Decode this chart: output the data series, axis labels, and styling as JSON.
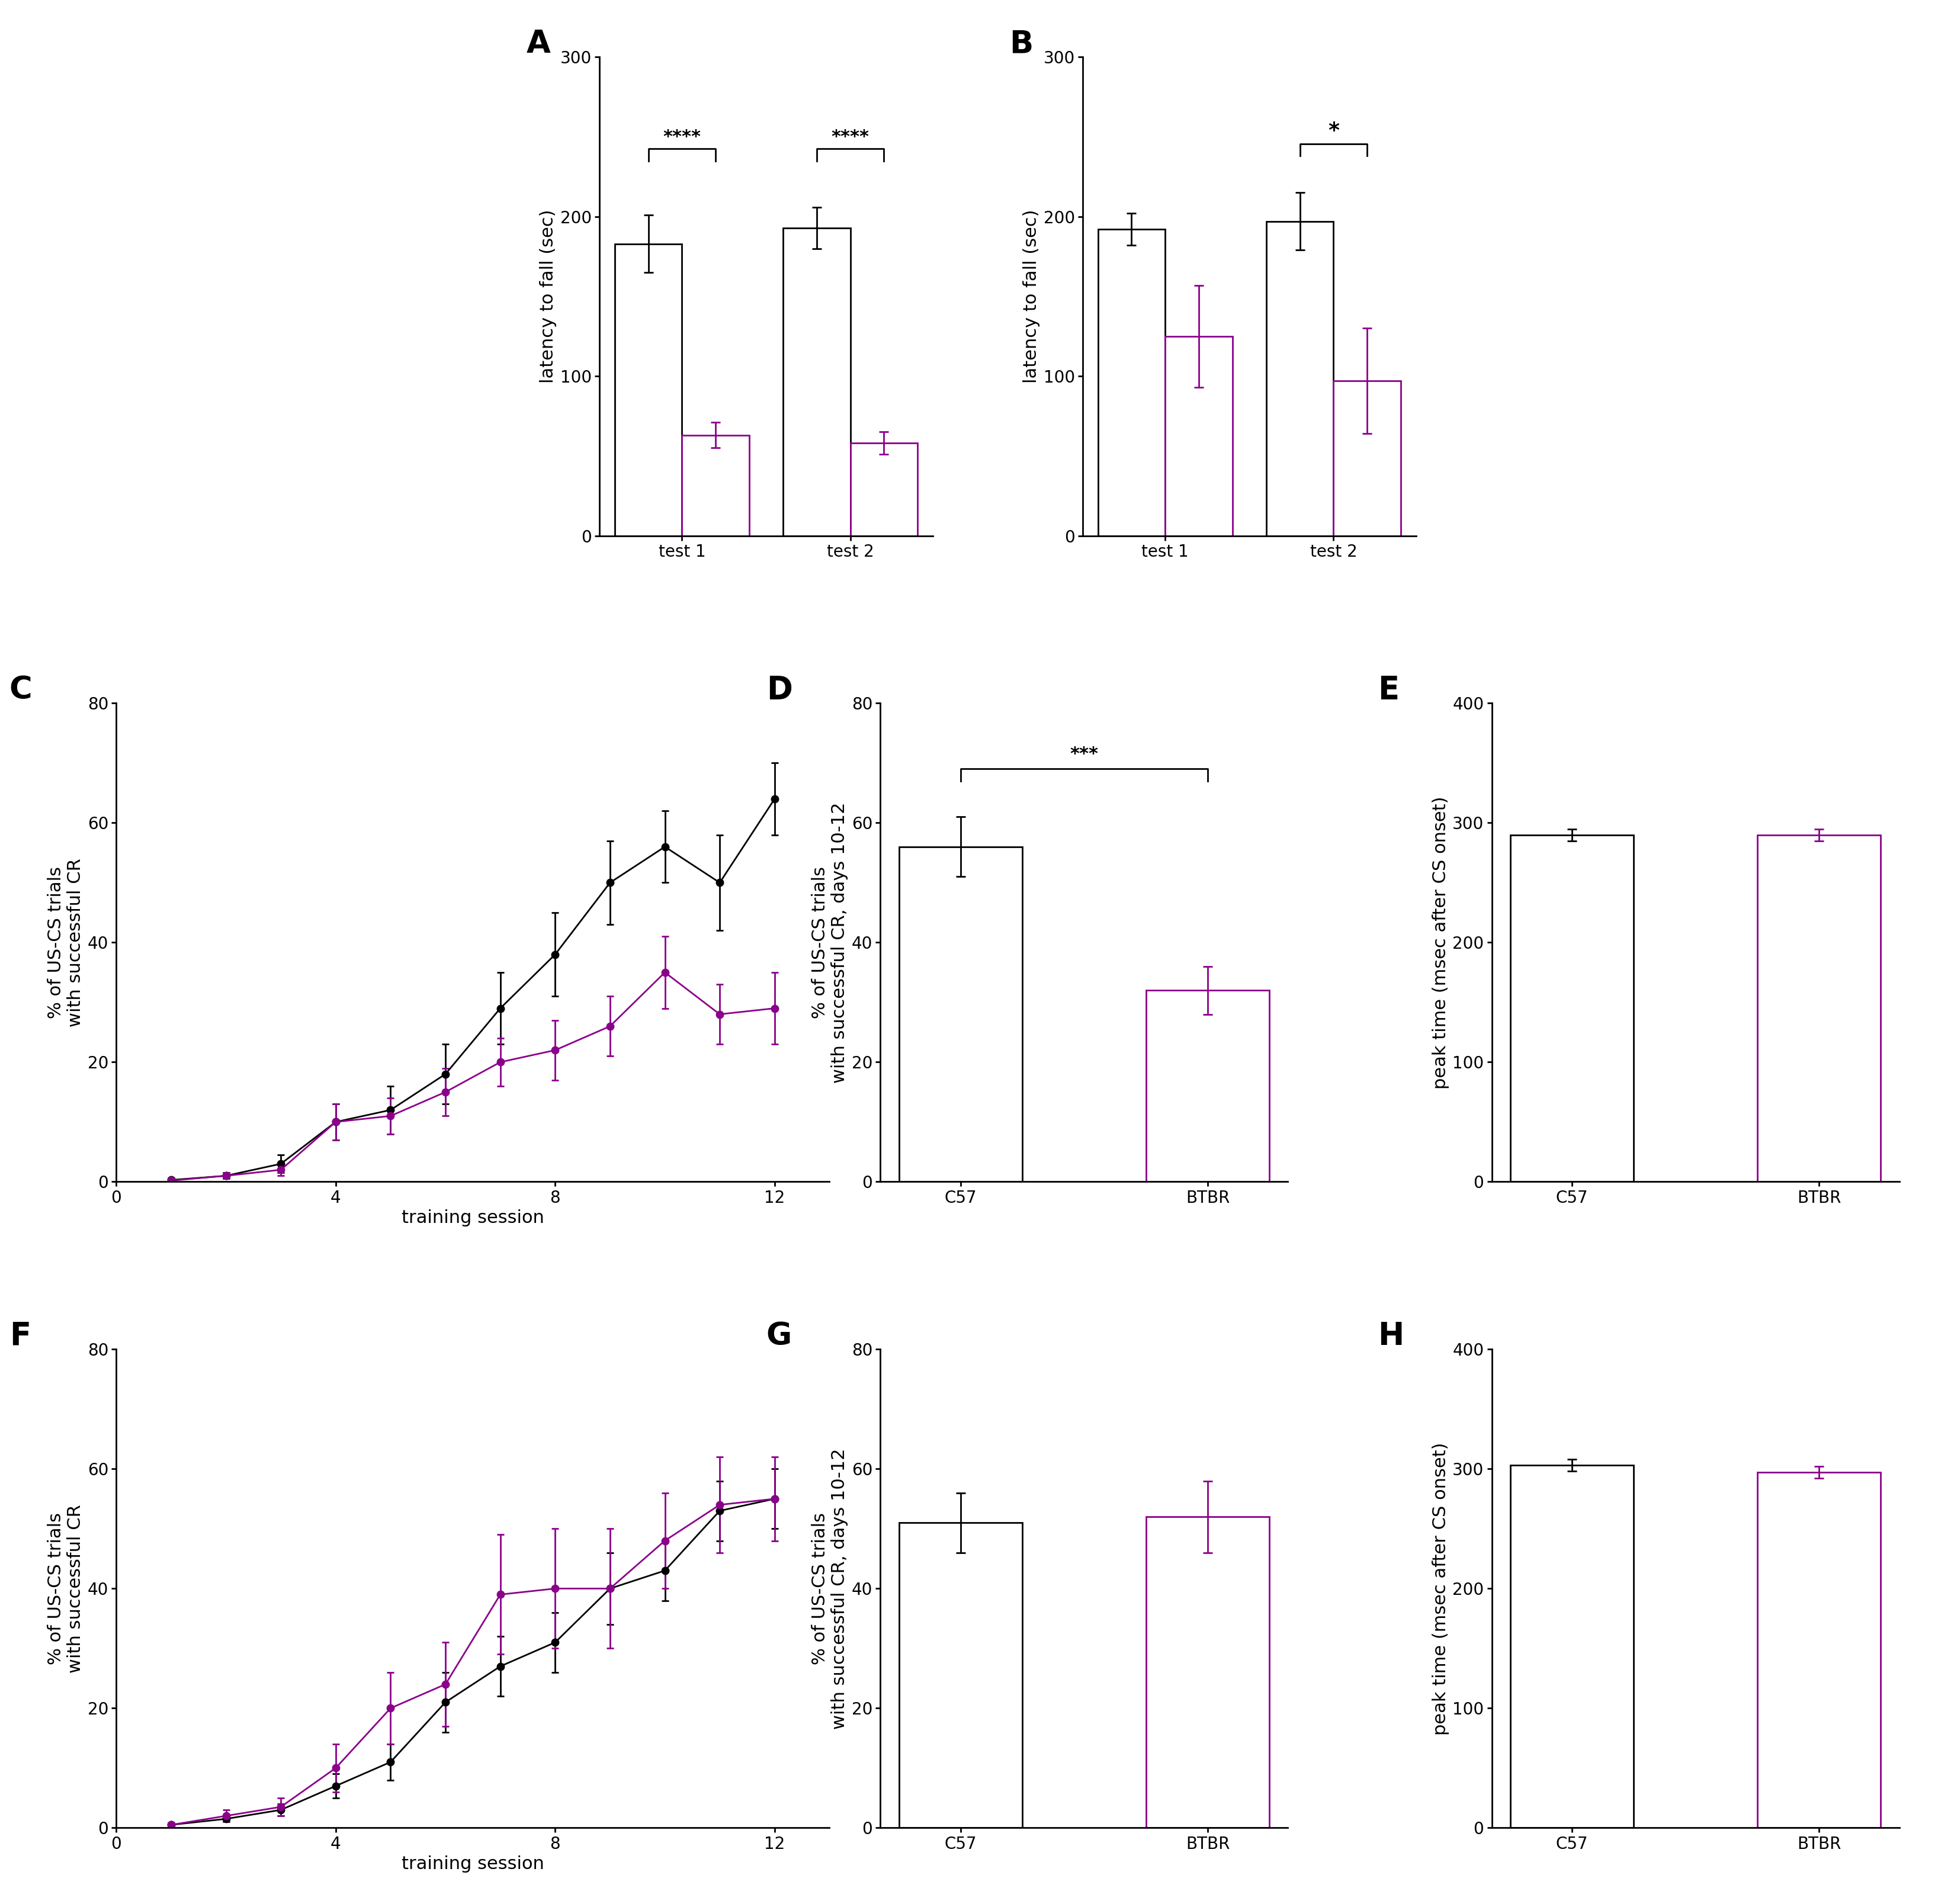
{
  "panel_A": {
    "groups": [
      "test 1",
      "test 2"
    ],
    "C57_means": [
      183,
      193
    ],
    "C57_errors": [
      18,
      13
    ],
    "BTBR_means": [
      63,
      58
    ],
    "BTBR_errors": [
      8,
      7
    ],
    "ylim": [
      0,
      300
    ],
    "yticks": [
      0,
      100,
      200,
      300
    ],
    "ylabel": "latency to fall (sec)",
    "sig_labels": [
      "****",
      "****"
    ],
    "title": "A"
  },
  "panel_B": {
    "groups": [
      "test 1",
      "test 2"
    ],
    "C57_means": [
      192,
      197
    ],
    "C57_errors": [
      10,
      18
    ],
    "BTBR_means": [
      125,
      97
    ],
    "BTBR_errors": [
      32,
      33
    ],
    "ylim": [
      0,
      300
    ],
    "yticks": [
      0,
      100,
      200,
      300
    ],
    "ylabel": "latency to fall (sec)",
    "sig_labels": [
      "",
      "*"
    ],
    "title": "B"
  },
  "panel_C": {
    "sessions": [
      1,
      2,
      3,
      4,
      5,
      6,
      7,
      8,
      9,
      10,
      11,
      12
    ],
    "C57_means": [
      0.3,
      1,
      3,
      10,
      12,
      18,
      29,
      38,
      50,
      56,
      50,
      64
    ],
    "C57_errors": [
      0.3,
      0.5,
      1.5,
      3,
      4,
      5,
      6,
      7,
      7,
      6,
      8,
      6
    ],
    "BTBR_means": [
      0.2,
      1,
      2,
      10,
      11,
      15,
      20,
      22,
      26,
      35,
      28,
      29
    ],
    "BTBR_errors": [
      0.2,
      0.5,
      1,
      3,
      3,
      4,
      4,
      5,
      5,
      6,
      5,
      6
    ],
    "ylim": [
      0,
      80
    ],
    "yticks": [
      0,
      20,
      40,
      60,
      80
    ],
    "xlabel": "training session",
    "ylabel": "% of US-CS trials\nwith successful CR",
    "title": "C",
    "xticks": [
      0,
      4,
      8,
      12
    ]
  },
  "panel_D": {
    "groups": [
      "C57",
      "BTBR"
    ],
    "means": [
      56,
      32
    ],
    "errors": [
      5,
      4
    ],
    "ylim": [
      0,
      80
    ],
    "yticks": [
      0,
      20,
      40,
      60,
      80
    ],
    "ylabel": "% of US-CS trials\nwith successful CR, days 10-12",
    "sig_label": "***",
    "title": "D"
  },
  "panel_E": {
    "groups": [
      "C57",
      "BTBR"
    ],
    "means": [
      290,
      290
    ],
    "errors": [
      5,
      5
    ],
    "ylim": [
      0,
      400
    ],
    "yticks": [
      0,
      100,
      200,
      300,
      400
    ],
    "ylabel": "peak time (msec after CS onset)",
    "sig_label": "",
    "title": "E"
  },
  "panel_F": {
    "sessions": [
      1,
      2,
      3,
      4,
      5,
      6,
      7,
      8,
      9,
      10,
      11,
      12
    ],
    "C57_means": [
      0.5,
      1.5,
      3,
      7,
      11,
      21,
      27,
      31,
      40,
      43,
      53,
      55
    ],
    "C57_errors": [
      0.3,
      0.5,
      1,
      2,
      3,
      5,
      5,
      5,
      6,
      5,
      5,
      5
    ],
    "BTBR_means": [
      0.5,
      2,
      3.5,
      10,
      20,
      24,
      39,
      40,
      40,
      48,
      54,
      55
    ],
    "BTBR_errors": [
      0.3,
      1,
      1.5,
      4,
      6,
      7,
      10,
      10,
      10,
      8,
      8,
      7
    ],
    "ylim": [
      0,
      80
    ],
    "yticks": [
      0,
      20,
      40,
      60,
      80
    ],
    "xlabel": "training session",
    "ylabel": "% of US-CS trials\nwith successful CR",
    "title": "F",
    "xticks": [
      0,
      4,
      8,
      12
    ]
  },
  "panel_G": {
    "groups": [
      "C57",
      "BTBR"
    ],
    "means": [
      51,
      52
    ],
    "errors": [
      5,
      6
    ],
    "ylim": [
      0,
      80
    ],
    "yticks": [
      0,
      20,
      40,
      60,
      80
    ],
    "ylabel": "% of US-CS trials\nwith successful CR, days 10-12",
    "sig_label": "",
    "title": "G"
  },
  "panel_H": {
    "groups": [
      "C57",
      "BTBR"
    ],
    "means": [
      303,
      297
    ],
    "errors": [
      5,
      5
    ],
    "ylim": [
      0,
      400
    ],
    "yticks": [
      0,
      100,
      200,
      300,
      400
    ],
    "ylabel": "peak time (msec after CS onset)",
    "sig_label": "",
    "title": "H"
  },
  "colors": {
    "C57_edge": "#000000",
    "BTBR_edge": "#8b008b",
    "C57_line": "#000000",
    "BTBR_line": "#8b008b"
  },
  "LABEL_FONTSIZE": 22,
  "TICK_FONTSIZE": 20,
  "PANEL_LABEL_SIZE": 38,
  "LINEWIDTH": 2.0,
  "BAR_WIDTH": 0.4
}
